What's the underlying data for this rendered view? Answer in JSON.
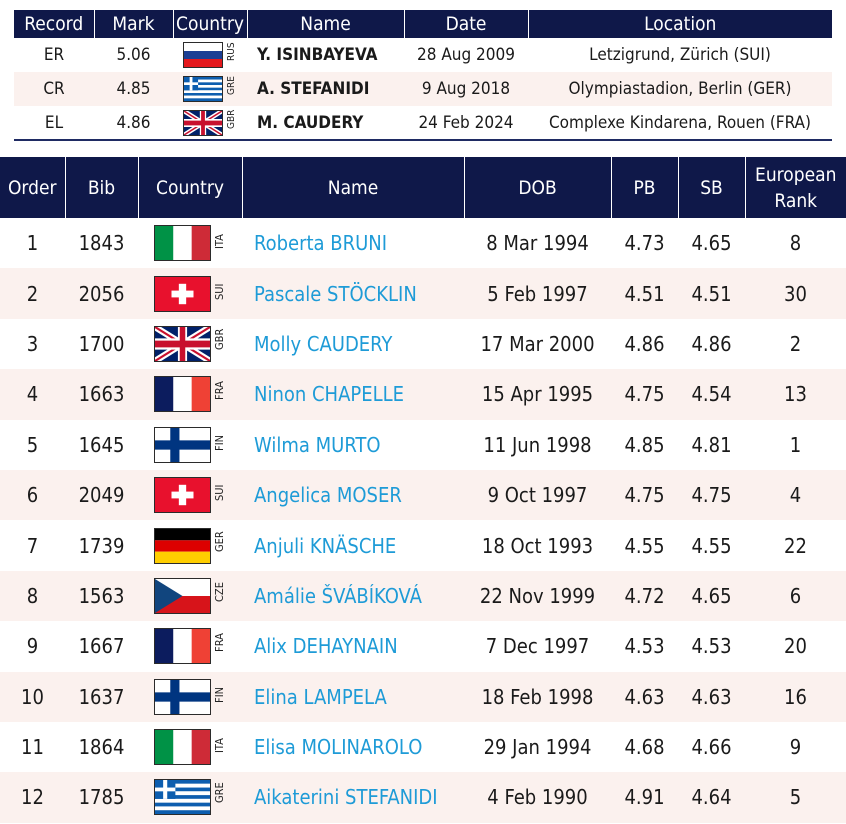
{
  "records": {
    "headers": [
      "Record",
      "Mark",
      "Country",
      "Name",
      "Date",
      "Location"
    ],
    "rows": [
      {
        "record": "ER",
        "mark": "5.06",
        "flag": "RUS",
        "country_code": "RUS",
        "name": "Y. ISINBAYEVA",
        "date": "28 Aug 2009",
        "location": "Letzigrund, Zürich (SUI)"
      },
      {
        "record": "CR",
        "mark": "4.85",
        "flag": "GRE",
        "country_code": "GRE",
        "name": "A. STEFANIDI",
        "date": "9 Aug 2018",
        "location": "Olympiastadion, Berlin (GER)"
      },
      {
        "record": "EL",
        "mark": "4.86",
        "flag": "GBR",
        "country_code": "GBR",
        "name": "M. CAUDERY",
        "date": "24 Feb 2024",
        "location": "Complexe Kindarena, Rouen (FRA)"
      }
    ]
  },
  "startlist": {
    "headers": [
      "Order",
      "Bib",
      "Country",
      "Name",
      "DOB",
      "PB",
      "SB",
      "European Rank"
    ],
    "rows": [
      {
        "order": "1",
        "bib": "1843",
        "flag": "ITA",
        "country_code": "ITA",
        "name": "Roberta BRUNI",
        "dob": "8 Mar 1994",
        "pb": "4.73",
        "sb": "4.65",
        "rank": "8"
      },
      {
        "order": "2",
        "bib": "2056",
        "flag": "SUI",
        "country_code": "SUI",
        "name": "Pascale STÖCKLIN",
        "dob": "5 Feb 1997",
        "pb": "4.51",
        "sb": "4.51",
        "rank": "30"
      },
      {
        "order": "3",
        "bib": "1700",
        "flag": "GBR",
        "country_code": "GBR",
        "name": "Molly CAUDERY",
        "dob": "17 Mar 2000",
        "pb": "4.86",
        "sb": "4.86",
        "rank": "2"
      },
      {
        "order": "4",
        "bib": "1663",
        "flag": "FRA",
        "country_code": "FRA",
        "name": "Ninon CHAPELLE",
        "dob": "15 Apr 1995",
        "pb": "4.75",
        "sb": "4.54",
        "rank": "13"
      },
      {
        "order": "5",
        "bib": "1645",
        "flag": "FIN",
        "country_code": "FIN",
        "name": "Wilma MURTO",
        "dob": "11 Jun 1998",
        "pb": "4.85",
        "sb": "4.81",
        "rank": "1"
      },
      {
        "order": "6",
        "bib": "2049",
        "flag": "SUI",
        "country_code": "SUI",
        "name": "Angelica MOSER",
        "dob": "9 Oct 1997",
        "pb": "4.75",
        "sb": "4.75",
        "rank": "4"
      },
      {
        "order": "7",
        "bib": "1739",
        "flag": "GER",
        "country_code": "GER",
        "name": "Anjuli KNÄSCHE",
        "dob": "18 Oct 1993",
        "pb": "4.55",
        "sb": "4.55",
        "rank": "22"
      },
      {
        "order": "8",
        "bib": "1563",
        "flag": "CZE",
        "country_code": "CZE",
        "name": "Amálie ŠVÁBÍKOVÁ",
        "dob": "22 Nov 1999",
        "pb": "4.72",
        "sb": "4.65",
        "rank": "6"
      },
      {
        "order": "9",
        "bib": "1667",
        "flag": "FRA",
        "country_code": "FRA",
        "name": "Alix DEHAYNAIN",
        "dob": "7 Dec 1997",
        "pb": "4.53",
        "sb": "4.53",
        "rank": "20"
      },
      {
        "order": "10",
        "bib": "1637",
        "flag": "FIN",
        "country_code": "FIN",
        "name": "Elina LAMPELA",
        "dob": "18 Feb 1998",
        "pb": "4.63",
        "sb": "4.63",
        "rank": "16"
      },
      {
        "order": "11",
        "bib": "1864",
        "flag": "ITA",
        "country_code": "ITA",
        "name": "Elisa MOLINAROLO",
        "dob": "29 Jan 1994",
        "pb": "4.68",
        "sb": "4.66",
        "rank": "9"
      },
      {
        "order": "12",
        "bib": "1785",
        "flag": "GRE",
        "country_code": "GRE",
        "name": "Aikaterini STEFANIDI",
        "dob": "4 Feb 1990",
        "pb": "4.91",
        "sb": "4.64",
        "rank": "5"
      }
    ]
  },
  "colors": {
    "header_bg": "#0f1849",
    "stripe_bg": "#fbf1ee",
    "name_link": "#1e9bd7"
  }
}
